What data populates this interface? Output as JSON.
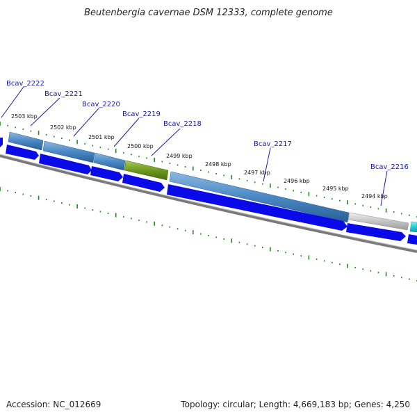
{
  "title": "Beutenbergia cavernae DSM 12333, complete genome",
  "footer": {
    "accession": "Accession: NC_012669",
    "summary": "Topology: circular; Length: 4,669,183 bp; Genes: 4,250"
  },
  "colors": {
    "forward_cds": "#0a0ae8",
    "gene_steel": "#4a88c4",
    "gene_olive": "#6e9a1e",
    "gene_grey": "#c4c4c4",
    "gene_cyan": "#20d0d8",
    "backbone": "#7a7a7a",
    "ticks": "#1f8a1f",
    "label": "#1a1aa8"
  },
  "scale": {
    "tick_labels": [
      "2503 kbp",
      "2502 kbp",
      "2501 kbp",
      "2500 kbp",
      "2499 kbp",
      "2498 kbp",
      "2497 kbp",
      "2496 kbp",
      "2495 kbp",
      "2494 kbp"
    ]
  },
  "genes": [
    {
      "label": "Bcav_2222"
    },
    {
      "label": "Bcav_2221"
    },
    {
      "label": "Bcav_2220"
    },
    {
      "label": "Bcav_2219"
    },
    {
      "label": "Bcav_2218"
    },
    {
      "label": "Bcav_2217"
    },
    {
      "label": "Bcav_2216"
    }
  ]
}
